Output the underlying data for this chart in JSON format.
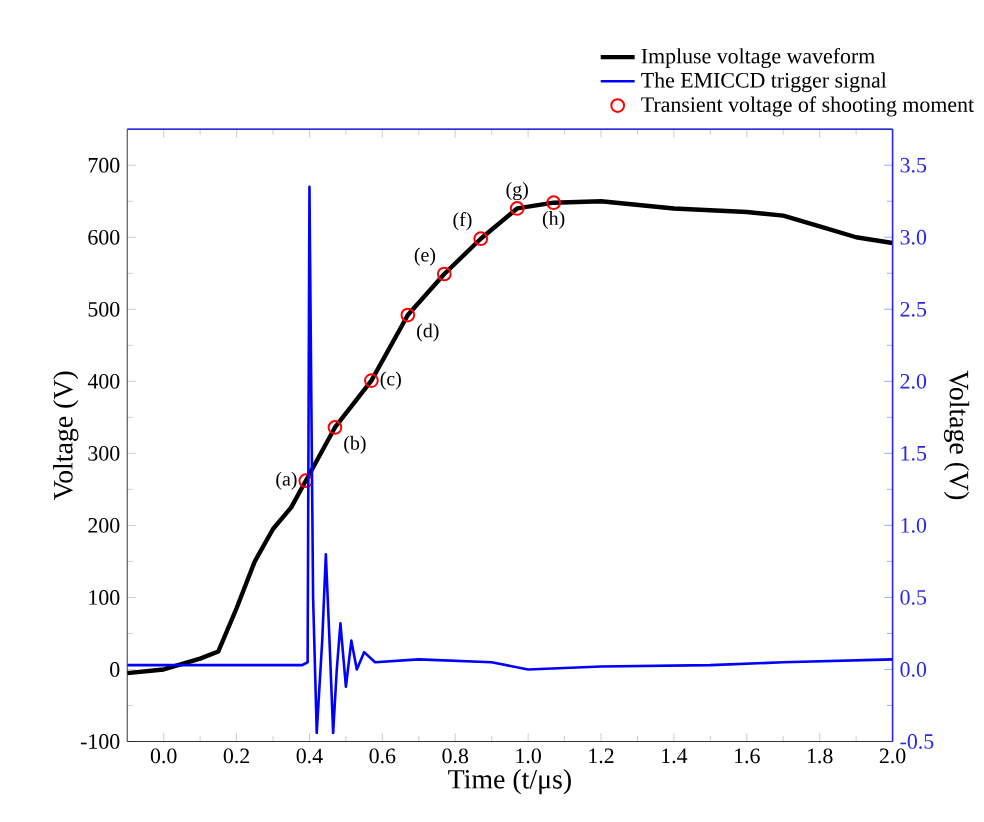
{
  "chart_data": {
    "type": "line",
    "xlabel": "Time (t/μs)",
    "ylabel": "Voltage (V)",
    "y2label": "Voltage (V)",
    "xlim": [
      -0.1,
      2.0
    ],
    "xticks": [
      {
        "value": 0,
        "label": "0.0"
      },
      {
        "value": 0.2,
        "label": "0.2"
      },
      {
        "value": 0.4,
        "label": "0.4"
      },
      {
        "value": 0.6,
        "label": "0.6"
      },
      {
        "value": 0.8,
        "label": "0.8"
      },
      {
        "value": 1.0,
        "label": "1.0"
      },
      {
        "value": 1.2,
        "label": "1.2"
      },
      {
        "value": 1.4,
        "label": "1.4"
      },
      {
        "value": 1.6,
        "label": "1.6"
      },
      {
        "value": 1.8,
        "label": "1.8"
      },
      {
        "value": 2.0,
        "label": "2.0"
      }
    ],
    "ylim": [
      -100,
      750
    ],
    "yticks": [
      -100,
      0,
      100,
      200,
      300,
      400,
      500,
      600,
      700
    ],
    "y2lim": [
      -0.5,
      3.75
    ],
    "y2ticks": [
      {
        "value": -0.5,
        "label": "-0.5"
      },
      {
        "value": 0,
        "label": "0.0"
      },
      {
        "value": 0.5,
        "label": "0.5"
      },
      {
        "value": 1.0,
        "label": "1.0"
      },
      {
        "value": 1.5,
        "label": "1.5"
      },
      {
        "value": 2.0,
        "label": "2.0"
      },
      {
        "value": 2.5,
        "label": "2.5"
      },
      {
        "value": 3.0,
        "label": "3.0"
      },
      {
        "value": 3.5,
        "label": "3.5"
      }
    ],
    "grid": false,
    "legend": "top right",
    "series": [
      {
        "name": "Impluse voltage waveform",
        "color": "#000000",
        "marker": "none",
        "x": [
          -0.1,
          0.0,
          0.1,
          0.15,
          0.2,
          0.25,
          0.3,
          0.35,
          0.39,
          0.47,
          0.57,
          0.67,
          0.77,
          0.87,
          0.97,
          1.07,
          1.2,
          1.4,
          1.6,
          1.7,
          1.8,
          1.9,
          2.0
        ],
        "values": [
          -5,
          0,
          15,
          25,
          85,
          150,
          195,
          225,
          262,
          336,
          401,
          492,
          549,
          598,
          640,
          648,
          650,
          640,
          635,
          630,
          615,
          600,
          592
        ]
      },
      {
        "name": "The EMICCD trigger signal",
        "axis": "y2",
        "color": "#0000ff",
        "marker": "none",
        "x": [
          -0.1,
          0.0,
          0.2,
          0.38,
          0.395,
          0.4,
          0.41,
          0.42,
          0.435,
          0.445,
          0.455,
          0.465,
          0.475,
          0.485,
          0.5,
          0.515,
          0.53,
          0.55,
          0.58,
          0.7,
          0.9,
          1.0,
          1.2,
          1.5,
          1.7,
          2.0
        ],
        "values": [
          0.03,
          0.03,
          0.03,
          0.03,
          0.05,
          3.35,
          0.5,
          -0.44,
          0.2,
          0.8,
          0.2,
          -0.44,
          0.0,
          0.32,
          -0.12,
          0.2,
          0.0,
          0.12,
          0.05,
          0.07,
          0.05,
          0.0,
          0.02,
          0.03,
          0.05,
          0.07
        ]
      },
      {
        "name": "Transient voltage of shooting moment",
        "type": "scatter",
        "color": "#ff0000",
        "marker": "circle",
        "x": [
          0.39,
          0.47,
          0.57,
          0.67,
          0.77,
          0.87,
          0.97,
          1.07
        ],
        "values": [
          262,
          336,
          401,
          492,
          549,
          598,
          640,
          648
        ]
      }
    ],
    "annotations": [
      {
        "text": "(a)",
        "x": 0.39,
        "y": 262
      },
      {
        "text": "(b)",
        "x": 0.47,
        "y": 336
      },
      {
        "text": "(c)",
        "x": 0.57,
        "y": 401
      },
      {
        "text": "(d)",
        "x": 0.67,
        "y": 492
      },
      {
        "text": "(e)",
        "x": 0.77,
        "y": 549
      },
      {
        "text": "(f)",
        "x": 0.87,
        "y": 598
      },
      {
        "text": "(g)",
        "x": 0.97,
        "y": 640
      },
      {
        "text": "(h)",
        "x": 1.07,
        "y": 648
      }
    ]
  }
}
